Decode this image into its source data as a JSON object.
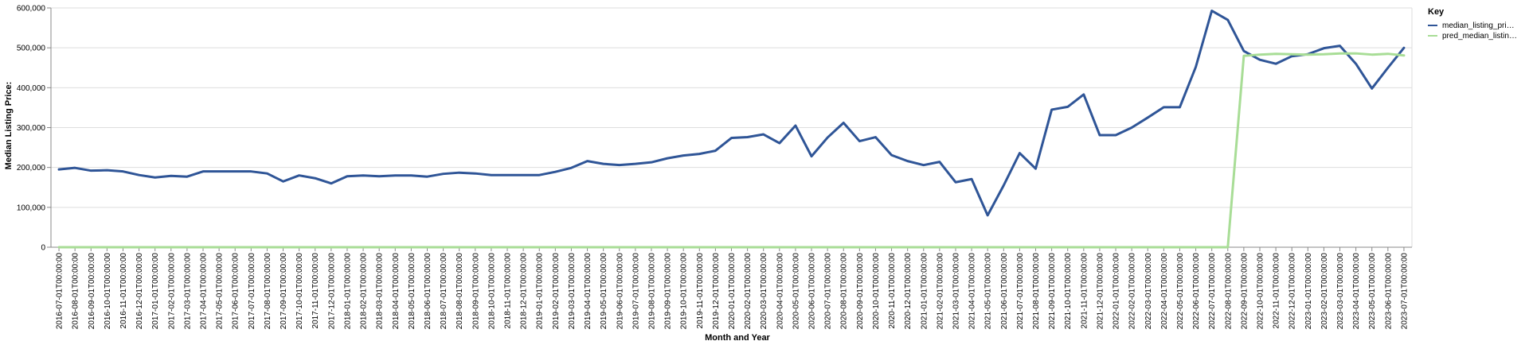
{
  "chart_data": {
    "type": "line",
    "xlabel": "Month and Year",
    "ylabel": "Median Listing Price:",
    "ylim": [
      0,
      600000
    ],
    "yticks": [
      0,
      100000,
      200000,
      300000,
      400000,
      500000,
      600000
    ],
    "ytick_labels": [
      "0",
      "100,000",
      "200,000",
      "300,000",
      "400,000",
      "500,000",
      "600,000"
    ],
    "grid": true,
    "legend": {
      "title": "Key",
      "position": "top-right",
      "entries": [
        "median_listing_pri…",
        "pred_median_listin…"
      ]
    },
    "categories": [
      "2016-07-01T00:00:00",
      "2016-08-01T00:00:00",
      "2016-09-01T00:00:00",
      "2016-10-01T00:00:00",
      "2016-11-01T00:00:00",
      "2016-12-01T00:00:00",
      "2017-01-01T00:00:00",
      "2017-02-01T00:00:00",
      "2017-03-01T00:00:00",
      "2017-04-01T00:00:00",
      "2017-05-01T00:00:00",
      "2017-06-01T00:00:00",
      "2017-07-01T00:00:00",
      "2017-08-01T00:00:00",
      "2017-09-01T00:00:00",
      "2017-10-01T00:00:00",
      "2017-11-01T00:00:00",
      "2017-12-01T00:00:00",
      "2018-01-01T00:00:00",
      "2018-02-01T00:00:00",
      "2018-03-01T00:00:00",
      "2018-04-01T00:00:00",
      "2018-05-01T00:00:00",
      "2018-06-01T00:00:00",
      "2018-07-01T00:00:00",
      "2018-08-01T00:00:00",
      "2018-09-01T00:00:00",
      "2018-10-01T00:00:00",
      "2018-11-01T00:00:00",
      "2018-12-01T00:00:00",
      "2019-01-01T00:00:00",
      "2019-02-01T00:00:00",
      "2019-03-01T00:00:00",
      "2019-04-01T00:00:00",
      "2019-05-01T00:00:00",
      "2019-06-01T00:00:00",
      "2019-07-01T00:00:00",
      "2019-08-01T00:00:00",
      "2019-09-01T00:00:00",
      "2019-10-01T00:00:00",
      "2019-11-01T00:00:00",
      "2019-12-01T00:00:00",
      "2020-01-01T00:00:00",
      "2020-02-01T00:00:00",
      "2020-03-01T00:00:00",
      "2020-04-01T00:00:00",
      "2020-05-01T00:00:00",
      "2020-06-01T00:00:00",
      "2020-07-01T00:00:00",
      "2020-08-01T00:00:00",
      "2020-09-01T00:00:00",
      "2020-10-01T00:00:00",
      "2020-11-01T00:00:00",
      "2020-12-01T00:00:00",
      "2021-01-01T00:00:00",
      "2021-02-01T00:00:00",
      "2021-03-01T00:00:00",
      "2021-04-01T00:00:00",
      "2021-05-01T00:00:00",
      "2021-06-01T00:00:00",
      "2021-07-01T00:00:00",
      "2021-08-01T00:00:00",
      "2021-09-01T00:00:00",
      "2021-10-01T00:00:00",
      "2021-11-01T00:00:00",
      "2021-12-01T00:00:00",
      "2022-01-01T00:00:00",
      "2022-02-01T00:00:00",
      "2022-03-01T00:00:00",
      "2022-04-01T00:00:00",
      "2022-05-01T00:00:00",
      "2022-06-01T00:00:00",
      "2022-07-01T00:00:00",
      "2022-08-01T00:00:00",
      "2022-09-01T00:00:00",
      "2022-10-01T00:00:00",
      "2022-11-01T00:00:00",
      "2022-12-01T00:00:00",
      "2023-01-01T00:00:00",
      "2023-02-01T00:00:00",
      "2023-03-01T00:00:00",
      "2023-04-01T00:00:00",
      "2023-05-01T00:00:00",
      "2023-06-01T00:00:00",
      "2023-07-01T00:00:00"
    ],
    "series": [
      {
        "name": "median_listing_pri…",
        "color": "#2f5597",
        "values": [
          195000,
          199000,
          192000,
          193000,
          190000,
          181000,
          175000,
          179000,
          177000,
          190000,
          190000,
          190000,
          190000,
          185000,
          165000,
          180000,
          173000,
          160000,
          178000,
          180000,
          178000,
          180000,
          180000,
          177000,
          184000,
          187000,
          185000,
          181000,
          181000,
          181000,
          181000,
          189000,
          199000,
          216000,
          209000,
          206000,
          209000,
          213000,
          223000,
          230000,
          234000,
          242000,
          274000,
          276000,
          283000,
          261000,
          305000,
          228000,
          275000,
          312000,
          266000,
          276000,
          231000,
          216000,
          206000,
          214000,
          163000,
          171000,
          80000,
          155000,
          236000,
          197000,
          345000,
          352000,
          383000,
          281000,
          281000,
          300000,
          325000,
          351000,
          351000,
          452000,
          593000,
          570000,
          492000,
          470000,
          460000,
          479000,
          484000,
          499000,
          505000,
          460000,
          398000,
          450000,
          500000
        ]
      },
      {
        "name": "pred_median_listin…",
        "color": "#a8dd96",
        "values": [
          0,
          0,
          0,
          0,
          0,
          0,
          0,
          0,
          0,
          0,
          0,
          0,
          0,
          0,
          0,
          0,
          0,
          0,
          0,
          0,
          0,
          0,
          0,
          0,
          0,
          0,
          0,
          0,
          0,
          0,
          0,
          0,
          0,
          0,
          0,
          0,
          0,
          0,
          0,
          0,
          0,
          0,
          0,
          0,
          0,
          0,
          0,
          0,
          0,
          0,
          0,
          0,
          0,
          0,
          0,
          0,
          0,
          0,
          0,
          0,
          0,
          0,
          0,
          0,
          0,
          0,
          0,
          0,
          0,
          0,
          0,
          0,
          0,
          0,
          480000,
          483000,
          485000,
          484000,
          483000,
          484000,
          486000,
          486000,
          483000,
          485000,
          481000
        ]
      }
    ]
  }
}
